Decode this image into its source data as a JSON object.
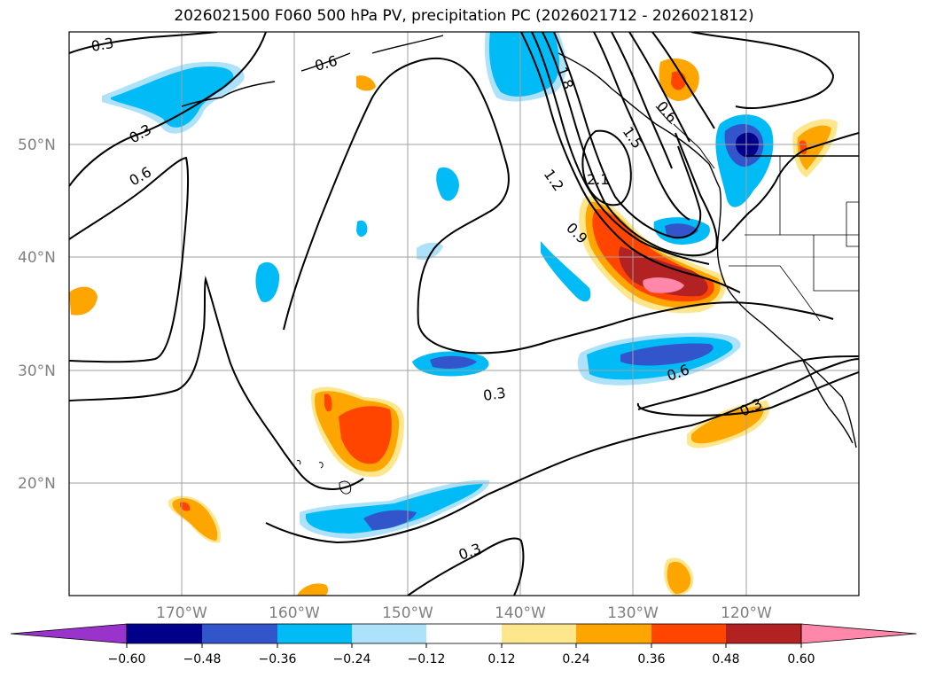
{
  "title": "2026021500 F060 500 hPa PV, precipitation PC (2026021712 - 2026021812)",
  "map": {
    "lon_labels": [
      "170°W",
      "160°W",
      "150°W",
      "140°W",
      "130°W",
      "120°W"
    ],
    "lat_labels": [
      "20°N",
      "30°N",
      "40°N",
      "50°N"
    ],
    "contour_labels": [
      "0.3",
      "0.6",
      "0.3",
      "0.6",
      "0.9",
      "1.2",
      "1.5",
      "1.8",
      "2.1",
      "0.6",
      "0.3",
      "0.6",
      "0.3",
      "0.3"
    ]
  },
  "colorbar": {
    "ticks": [
      "−0.60",
      "−0.48",
      "−0.36",
      "−0.24",
      "−0.12",
      "0.12",
      "0.24",
      "0.36",
      "0.48",
      "0.60"
    ],
    "colors": [
      "#9933cc",
      "#00008b",
      "#3355cc",
      "#00bbf5",
      "#aee2fb",
      "#ffffff",
      "#fde68c",
      "#ffa500",
      "#ff4500",
      "#b22222",
      "#ff88aa"
    ]
  }
}
